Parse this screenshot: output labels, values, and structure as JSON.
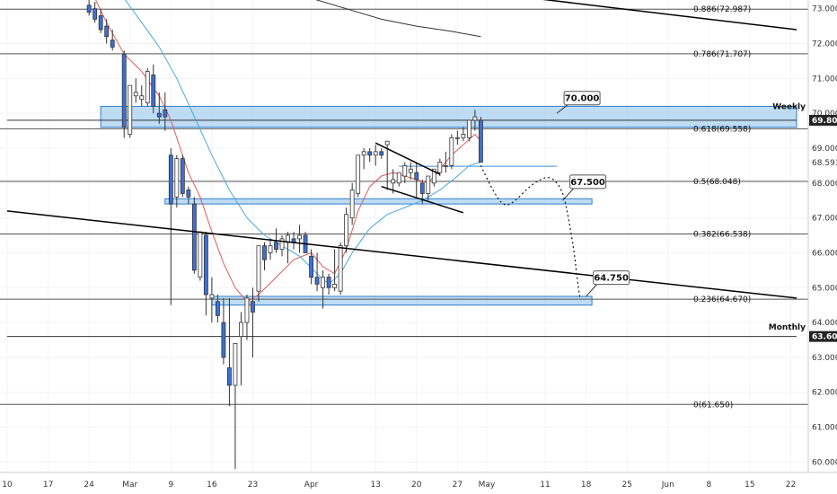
{
  "chart_data": {
    "type": "candlestick",
    "y_axis": {
      "range": [
        59.7,
        73.25
      ],
      "ticks": [
        "73.000",
        "72.000",
        "71.000",
        "70.000",
        "69.000",
        "68.000",
        "67.000",
        "66.000",
        "65.000",
        "64.000",
        "63.000",
        "62.000",
        "61.000",
        "60.000"
      ],
      "tick_values": [
        73,
        72,
        71,
        70,
        69,
        68,
        67,
        66,
        65,
        64,
        63,
        62,
        61,
        60
      ]
    },
    "x_axis": {
      "range": [
        0,
        135
      ],
      "ticks": [
        {
          "label": "10",
          "t": 0
        },
        {
          "label": "17",
          "t": 7
        },
        {
          "label": "24",
          "t": 14
        },
        {
          "label": "Mar",
          "t": 21
        },
        {
          "label": "9",
          "t": 28
        },
        {
          "label": "16",
          "t": 35
        },
        {
          "label": "23",
          "t": 42
        },
        {
          "label": "Apr",
          "t": 52
        },
        {
          "label": "13",
          "t": 63
        },
        {
          "label": "20",
          "t": 70
        },
        {
          "label": "27",
          "t": 77
        },
        {
          "label": "May",
          "t": 82
        },
        {
          "label": "11",
          "t": 92
        },
        {
          "label": "18",
          "t": 99
        },
        {
          "label": "25",
          "t": 106
        },
        {
          "label": "Jun",
          "t": 113
        },
        {
          "label": "8",
          "t": 120
        },
        {
          "label": "15",
          "t": 127
        },
        {
          "label": "22",
          "t": 134
        }
      ]
    },
    "candles": [
      {
        "t": 14,
        "o": 73.1,
        "h": 73.3,
        "l": 72.8,
        "c": 72.9
      },
      {
        "t": 15,
        "o": 73.0,
        "h": 73.2,
        "l": 72.6,
        "c": 72.7
      },
      {
        "t": 16,
        "o": 72.8,
        "h": 73.0,
        "l": 72.3,
        "c": 72.4
      },
      {
        "t": 17,
        "o": 72.5,
        "h": 72.7,
        "l": 72.0,
        "c": 72.2
      },
      {
        "t": 18,
        "o": 72.1,
        "h": 72.4,
        "l": 71.8,
        "c": 71.9
      },
      {
        "t": 20,
        "o": 71.7,
        "h": 71.8,
        "l": 69.3,
        "c": 69.6
      },
      {
        "t": 21,
        "o": 69.4,
        "h": 70.8,
        "l": 69.3,
        "c": 70.8
      },
      {
        "t": 22,
        "o": 70.5,
        "h": 71.0,
        "l": 70.3,
        "c": 70.6
      },
      {
        "t": 23,
        "o": 70.4,
        "h": 70.8,
        "l": 70.2,
        "c": 70.5
      },
      {
        "t": 24,
        "o": 70.3,
        "h": 71.3,
        "l": 70.2,
        "c": 71.2
      },
      {
        "t": 25,
        "o": 71.1,
        "h": 71.4,
        "l": 70.0,
        "c": 70.2
      },
      {
        "t": 26,
        "o": 70.0,
        "h": 70.6,
        "l": 69.7,
        "c": 69.9
      },
      {
        "t": 27,
        "o": 70.1,
        "h": 70.6,
        "l": 69.5,
        "c": 69.9
      },
      {
        "t": 28,
        "o": 68.8,
        "h": 69.0,
        "l": 64.5,
        "c": 67.4
      },
      {
        "t": 29,
        "o": 67.6,
        "h": 68.8,
        "l": 67.3,
        "c": 68.7
      },
      {
        "t": 30,
        "o": 68.7,
        "h": 68.8,
        "l": 67.6,
        "c": 67.7
      },
      {
        "t": 31,
        "o": 67.8,
        "h": 67.9,
        "l": 67.4,
        "c": 67.6
      },
      {
        "t": 32,
        "o": 67.4,
        "h": 67.6,
        "l": 65.4,
        "c": 65.5
      },
      {
        "t": 33,
        "o": 65.3,
        "h": 66.6,
        "l": 65.2,
        "c": 66.6
      },
      {
        "t": 34,
        "o": 66.5,
        "h": 66.6,
        "l": 64.2,
        "c": 64.8
      },
      {
        "t": 35,
        "o": 64.7,
        "h": 65.3,
        "l": 64.0,
        "c": 64.8
      },
      {
        "t": 36,
        "o": 64.6,
        "h": 64.8,
        "l": 64.0,
        "c": 64.2
      },
      {
        "t": 37,
        "o": 64.0,
        "h": 64.7,
        "l": 62.8,
        "c": 63.0
      },
      {
        "t": 38,
        "o": 62.7,
        "h": 64.7,
        "l": 61.6,
        "c": 62.2
      },
      {
        "t": 39,
        "o": 62.2,
        "h": 63.4,
        "l": 59.8,
        "c": 63.4
      },
      {
        "t": 40,
        "o": 63.6,
        "h": 64.3,
        "l": 62.2,
        "c": 64.0
      },
      {
        "t": 41,
        "o": 64.0,
        "h": 64.8,
        "l": 63.5,
        "c": 64.7
      },
      {
        "t": 42,
        "o": 64.6,
        "h": 65.0,
        "l": 63.0,
        "c": 64.3
      },
      {
        "t": 43,
        "o": 64.9,
        "h": 66.2,
        "l": 64.6,
        "c": 66.2
      },
      {
        "t": 44,
        "o": 66.2,
        "h": 66.3,
        "l": 65.5,
        "c": 65.8
      },
      {
        "t": 45,
        "o": 66.0,
        "h": 66.4,
        "l": 65.8,
        "c": 66.2
      },
      {
        "t": 46,
        "o": 66.3,
        "h": 66.7,
        "l": 66.0,
        "c": 66.1
      },
      {
        "t": 47,
        "o": 66.1,
        "h": 66.5,
        "l": 65.9,
        "c": 66.4
      },
      {
        "t": 48,
        "o": 66.3,
        "h": 66.6,
        "l": 65.7,
        "c": 66.5
      },
      {
        "t": 49,
        "o": 66.4,
        "h": 66.6,
        "l": 66.1,
        "c": 66.3
      },
      {
        "t": 50,
        "o": 66.4,
        "h": 66.8,
        "l": 66.0,
        "c": 66.5
      },
      {
        "t": 51,
        "o": 66.5,
        "h": 66.6,
        "l": 66.0,
        "c": 66.0
      },
      {
        "t": 52,
        "o": 65.9,
        "h": 66.1,
        "l": 65.1,
        "c": 65.3
      },
      {
        "t": 53,
        "o": 65.3,
        "h": 66.0,
        "l": 64.9,
        "c": 65.1
      },
      {
        "t": 54,
        "o": 65.0,
        "h": 65.5,
        "l": 64.4,
        "c": 65.3
      },
      {
        "t": 55,
        "o": 65.3,
        "h": 65.4,
        "l": 64.8,
        "c": 65.0
      },
      {
        "t": 56,
        "o": 65.0,
        "h": 66.1,
        "l": 64.9,
        "c": 65.1
      },
      {
        "t": 57,
        "o": 64.9,
        "h": 66.3,
        "l": 64.8,
        "c": 66.2
      },
      {
        "t": 58,
        "o": 66.2,
        "h": 67.3,
        "l": 66.0,
        "c": 67.1
      },
      {
        "t": 59,
        "o": 67.0,
        "h": 68.0,
        "l": 66.8,
        "c": 67.8
      },
      {
        "t": 60,
        "o": 67.7,
        "h": 68.8,
        "l": 67.6,
        "c": 68.8
      },
      {
        "t": 61,
        "o": 68.8,
        "h": 69.0,
        "l": 68.4,
        "c": 68.9
      },
      {
        "t": 62,
        "o": 68.9,
        "h": 69.0,
        "l": 68.6,
        "c": 68.8
      },
      {
        "t": 63,
        "o": 68.8,
        "h": 69.1,
        "l": 68.5,
        "c": 68.9
      },
      {
        "t": 64,
        "o": 68.9,
        "h": 69.0,
        "l": 68.7,
        "c": 68.8
      },
      {
        "t": 65,
        "o": 69.1,
        "h": 69.2,
        "l": 67.8,
        "c": 69.2
      },
      {
        "t": 66,
        "o": 68.0,
        "h": 68.4,
        "l": 67.7,
        "c": 68.1
      },
      {
        "t": 67,
        "o": 68.0,
        "h": 68.3,
        "l": 67.9,
        "c": 68.3
      },
      {
        "t": 68,
        "o": 68.2,
        "h": 68.6,
        "l": 68.0,
        "c": 68.5
      },
      {
        "t": 69,
        "o": 68.3,
        "h": 68.6,
        "l": 68.1,
        "c": 68.4
      },
      {
        "t": 70,
        "o": 68.3,
        "h": 68.6,
        "l": 67.6,
        "c": 68.1
      },
      {
        "t": 71,
        "o": 68.0,
        "h": 68.1,
        "l": 67.4,
        "c": 67.7
      },
      {
        "t": 72,
        "o": 67.7,
        "h": 68.2,
        "l": 67.5,
        "c": 68.2
      },
      {
        "t": 73,
        "o": 68.0,
        "h": 68.4,
        "l": 67.9,
        "c": 68.4
      },
      {
        "t": 74,
        "o": 68.3,
        "h": 68.7,
        "l": 68.2,
        "c": 68.6
      },
      {
        "t": 75,
        "o": 68.5,
        "h": 68.9,
        "l": 68.3,
        "c": 68.5
      },
      {
        "t": 76,
        "o": 68.5,
        "h": 69.4,
        "l": 68.4,
        "c": 69.3
      },
      {
        "t": 77,
        "o": 69.3,
        "h": 69.5,
        "l": 69.1,
        "c": 69.3
      },
      {
        "t": 78,
        "o": 69.3,
        "h": 69.6,
        "l": 69.2,
        "c": 69.4
      },
      {
        "t": 79,
        "o": 69.3,
        "h": 69.8,
        "l": 69.2,
        "c": 69.8
      },
      {
        "t": 80,
        "o": 69.8,
        "h": 70.1,
        "l": 69.5,
        "c": 69.9
      },
      {
        "t": 81,
        "o": 69.8,
        "h": 69.9,
        "l": 68.6,
        "c": 68.6
      }
    ],
    "up_color": "#ffffff",
    "down_color": "#3d6fd6",
    "candle_border_color": "#333333",
    "moving_averages": [
      {
        "color": "#e05a5a",
        "points": [
          [
            15,
            73.3
          ],
          [
            17,
            72.6
          ],
          [
            20,
            71.7
          ],
          [
            23,
            71.2
          ],
          [
            26,
            70.5
          ],
          [
            28,
            69.8
          ],
          [
            31,
            68.3
          ],
          [
            33,
            67.6
          ],
          [
            35,
            66.6
          ],
          [
            37,
            65.7
          ],
          [
            39,
            65.0
          ],
          [
            41,
            64.6
          ],
          [
            43,
            64.8
          ],
          [
            46,
            65.3
          ],
          [
            49,
            65.8
          ],
          [
            52,
            66.0
          ],
          [
            54,
            65.6
          ],
          [
            56,
            65.4
          ],
          [
            58,
            66.1
          ],
          [
            60,
            67.2
          ],
          [
            62,
            67.9
          ],
          [
            64,
            68.2
          ],
          [
            66,
            68.3
          ],
          [
            68,
            68.2
          ],
          [
            70,
            68.1
          ],
          [
            72,
            68.0
          ],
          [
            74,
            68.4
          ],
          [
            76,
            68.8
          ],
          [
            78,
            69.1
          ],
          [
            80,
            69.4
          ],
          [
            81,
            69.2
          ]
        ]
      },
      {
        "color": "#4aa8e0",
        "points": [
          [
            20,
            73.3
          ],
          [
            23,
            72.6
          ],
          [
            26,
            71.9
          ],
          [
            29,
            71.0
          ],
          [
            32,
            69.9
          ],
          [
            35,
            68.8
          ],
          [
            38,
            67.8
          ],
          [
            41,
            67.0
          ],
          [
            44,
            66.5
          ],
          [
            47,
            66.2
          ],
          [
            50,
            65.9
          ],
          [
            53,
            65.4
          ],
          [
            55,
            65.1
          ],
          [
            57,
            65.4
          ],
          [
            59,
            66.0
          ],
          [
            62,
            66.7
          ],
          [
            65,
            67.1
          ],
          [
            68,
            67.3
          ],
          [
            71,
            67.5
          ],
          [
            74,
            67.8
          ],
          [
            77,
            68.2
          ],
          [
            79,
            68.5
          ],
          [
            81,
            68.6
          ]
        ]
      },
      {
        "color": "#333333",
        "points": [
          [
            52,
            73.3
          ],
          [
            58,
            73.0
          ],
          [
            64,
            72.7
          ],
          [
            70,
            72.5
          ],
          [
            76,
            72.35
          ],
          [
            81,
            72.2
          ]
        ]
      }
    ],
    "fib_levels": [
      {
        "label": "0.886(72.987)",
        "value": 72.987
      },
      {
        "label": "0.786(71.707)",
        "value": 71.707
      },
      {
        "label": "0.618(69.558)",
        "value": 69.558
      },
      {
        "label": "0.5(68.048)",
        "value": 68.048
      },
      {
        "label": "0.382(66.538)",
        "value": 66.538
      },
      {
        "label": "0.236(64.670)",
        "value": 64.67
      },
      {
        "label": "0(61.650)",
        "value": 61.65
      }
    ],
    "zones": [
      {
        "name": "weekly-zone",
        "label": "Weekly",
        "t_from": 16,
        "t_to": 135,
        "y_low": 69.6,
        "y_high": 70.2
      },
      {
        "name": "mid-zone",
        "label": "",
        "t_from": 27,
        "t_to": 100,
        "y_low": 67.4,
        "y_high": 67.55
      },
      {
        "name": "low-zone",
        "label": "",
        "t_from": 35,
        "t_to": 100,
        "y_low": 64.5,
        "y_high": 64.75
      }
    ],
    "horizontal_lines": [
      {
        "value": 69.8,
        "t_from": 0,
        "t_to": 135,
        "color": "#333333"
      },
      {
        "value": 63.6,
        "t_from": 0,
        "t_to": 135,
        "color": "#333333"
      },
      {
        "value": 68.48,
        "t_from": 67,
        "t_to": 94,
        "color": "#3d8fd6"
      }
    ],
    "trendlines": [
      {
        "from": [
          90,
          73.3
        ],
        "to": [
          135,
          72.4
        ]
      },
      {
        "from": [
          0,
          67.2
        ],
        "to": [
          135,
          64.7
        ]
      },
      {
        "from": [
          63,
          69.15
        ],
        "to": [
          74,
          68.25
        ]
      },
      {
        "from": [
          64,
          67.9
        ],
        "to": [
          78,
          67.15
        ]
      }
    ],
    "projection_path": [
      [
        81,
        68.5
      ],
      [
        83,
        67.8
      ],
      [
        85,
        67.3
      ],
      [
        87,
        67.5
      ],
      [
        89,
        67.85
      ],
      [
        91,
        68.1
      ],
      [
        93,
        68.2
      ],
      [
        95,
        67.8
      ],
      [
        96,
        67.0
      ],
      [
        97,
        66.0
      ],
      [
        97.5,
        65.2
      ],
      [
        98,
        64.67
      ]
    ],
    "callouts": [
      {
        "name": "callout-70",
        "text": "70.000",
        "anchor": [
          94,
          70.0
        ],
        "box": [
          98,
          70.45
        ]
      },
      {
        "name": "callout-67-5",
        "text": "67.500",
        "anchor": [
          95,
          67.5
        ],
        "box": [
          99,
          68.05
        ]
      },
      {
        "name": "callout-64-75",
        "text": "64.750",
        "anchor": [
          99,
          64.75
        ],
        "box": [
          103,
          65.3
        ]
      }
    ],
    "price_tags": [
      {
        "text": "Weekly",
        "value": 70.2
      },
      {
        "text": "Monthly",
        "value": 63.87
      }
    ],
    "price_badges": [
      {
        "text": "69.800",
        "value": 69.8
      },
      {
        "text": "68.593",
        "value": 68.593,
        "style": "plain"
      },
      {
        "text": "63.600",
        "value": 63.6
      }
    ]
  }
}
